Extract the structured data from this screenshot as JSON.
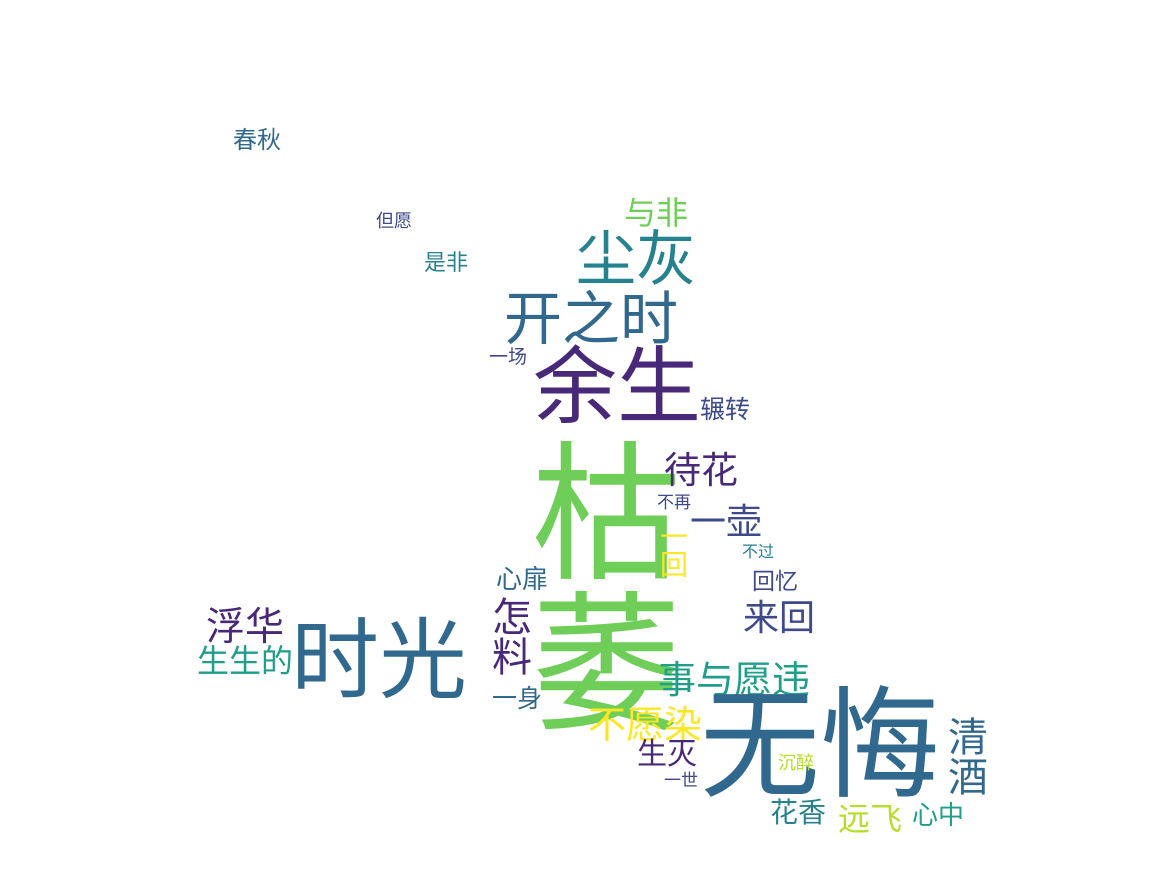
{
  "palette": {
    "dark_purple": "#482878",
    "indigo": "#3e4a89",
    "blue": "#31688e",
    "teal": "#26828e",
    "sea_green": "#1f9e89",
    "green": "#35b779",
    "light_green": "#6ece58",
    "lime": "#b5de2b",
    "yellow": "#fde725"
  },
  "words": {
    "chunqiu": "春秋",
    "danyuan": "但愿",
    "shifei": "是非",
    "yufei": "与非",
    "chenhui": "尘灰",
    "kaizhishi": "开之时",
    "yichang": "一场",
    "yusheng": "余生",
    "zhanzhuan": "辗转",
    "daihua": "待花",
    "kuwei": "枯萎",
    "buzai": "不再",
    "yihu": "一壶",
    "yihui": "一回",
    "buguo": "不过",
    "huiyi": "回忆",
    "xinfei": "心扉",
    "zenliao": "怎料",
    "laihui": "来回",
    "fuhua": "浮华",
    "shiguang": "时光",
    "shengsheng": "生生的",
    "shiyuyuanwei": "事与愿违",
    "yishen": "一身",
    "buyuanran": "不愿染",
    "wuhui": "无悔",
    "shengmie": "生灭",
    "qingjiu": "清酒",
    "chenzui": "沉醉",
    "yishi": "一世",
    "huaxiang": "花香",
    "yuanfei": "远飞",
    "xinzhong": "心中"
  }
}
